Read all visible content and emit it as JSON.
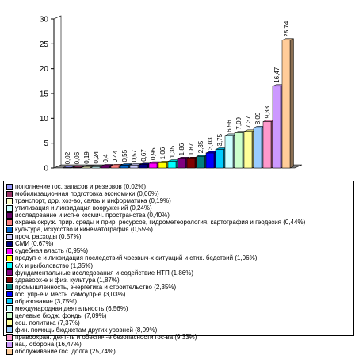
{
  "chart_data": {
    "type": "bar",
    "ylim": [
      0,
      30
    ],
    "yticks": [
      0,
      5,
      10,
      15,
      20,
      25,
      30
    ],
    "grid": false,
    "legend_position": "bottom",
    "bar_style": "3d",
    "series": [
      {
        "name": "пополнение гос. запасов и резервов (0,02%)",
        "value": 0.02,
        "label": "0,02",
        "color": "#9999ff"
      },
      {
        "name": "мобилизационная подготовка экономики (0,06%)",
        "value": 0.06,
        "label": "0,06",
        "color": "#993366"
      },
      {
        "name": "транспорт, дор. хоз-во, связь и информатика (0,19%)",
        "value": 0.19,
        "label": "0,19",
        "color": "#ffffcc"
      },
      {
        "name": "утилизация и ликвидация вооружений (0,24%)",
        "value": 0.24,
        "label": "0,24",
        "color": "#ccffff"
      },
      {
        "name": "исследование и исп-е космич. пространства (0,40%)",
        "value": 0.4,
        "label": "0,4",
        "color": "#660066"
      },
      {
        "name": "охрана окруж. прир. среды и прир. ресурсов, гидрометеорология, картография и геодезия (0,44%)",
        "value": 0.44,
        "label": "0,44",
        "color": "#ff8080"
      },
      {
        "name": "культура, искусство и кинематография (0,55%)",
        "value": 0.55,
        "label": "0,55",
        "color": "#0066cc"
      },
      {
        "name": "проч. расходы (0,57%)",
        "value": 0.57,
        "label": "0,57",
        "color": "#ccccff"
      },
      {
        "name": "СМИ (0,67%)",
        "value": 0.67,
        "label": "0,67",
        "color": "#000080"
      },
      {
        "name": "судебная власть (0,95%)",
        "value": 0.95,
        "label": "0,95",
        "color": "#ff00ff"
      },
      {
        "name": "предуп-е и ликвидация последствий чрезвыч-х ситуаций и стих. бедствий (1,06%)",
        "value": 1.06,
        "label": "1,06",
        "color": "#ffff00"
      },
      {
        "name": "с/х и рыболовство (1,35%)",
        "value": 1.35,
        "label": "1,35",
        "color": "#00ffff"
      },
      {
        "name": "фундаментальные исследования и содействие НТП (1,86%)",
        "value": 1.86,
        "label": "1,86",
        "color": "#800080"
      },
      {
        "name": "здравоох-е и физ. культура (1,87%)",
        "value": 1.87,
        "label": "1,87",
        "color": "#800000"
      },
      {
        "name": "промышленность, энергетика и строительство (2,35%)",
        "value": 2.35,
        "label": "2,35",
        "color": "#008080"
      },
      {
        "name": "гос. упр-е и местн. самоупр-е (3,03%)",
        "value": 3.03,
        "label": "3,03",
        "color": "#0000ff"
      },
      {
        "name": "образование (3,75%)",
        "value": 3.75,
        "label": "3,75",
        "color": "#00ccff"
      },
      {
        "name": "международная деятельность (6,56%)",
        "value": 6.56,
        "label": "6,56",
        "color": "#ccffff"
      },
      {
        "name": "целевые бюдж. фонды (7,09%)",
        "value": 7.09,
        "label": "7,09",
        "color": "#ccffcc"
      },
      {
        "name": "соц. политика (7,37%)",
        "value": 7.37,
        "label": "7,37",
        "color": "#ffff99"
      },
      {
        "name": "фин. помощь бюджетам других уровней (8,09%)",
        "value": 8.09,
        "label": "8,09",
        "color": "#99ccff"
      },
      {
        "name": "правоохран. деят-ть и обеспеч-е безопасности гос-ва (9,33%)",
        "value": 9.33,
        "label": "9,33",
        "color": "#ff99cc"
      },
      {
        "name": "нац. оборона (16,47%)",
        "value": 16.47,
        "label": "16,47",
        "color": "#cc99ff"
      },
      {
        "name": "обслуживание гос. долга (25,74%)",
        "value": 25.74,
        "label": "25,74",
        "color": "#ffcc99"
      }
    ]
  }
}
